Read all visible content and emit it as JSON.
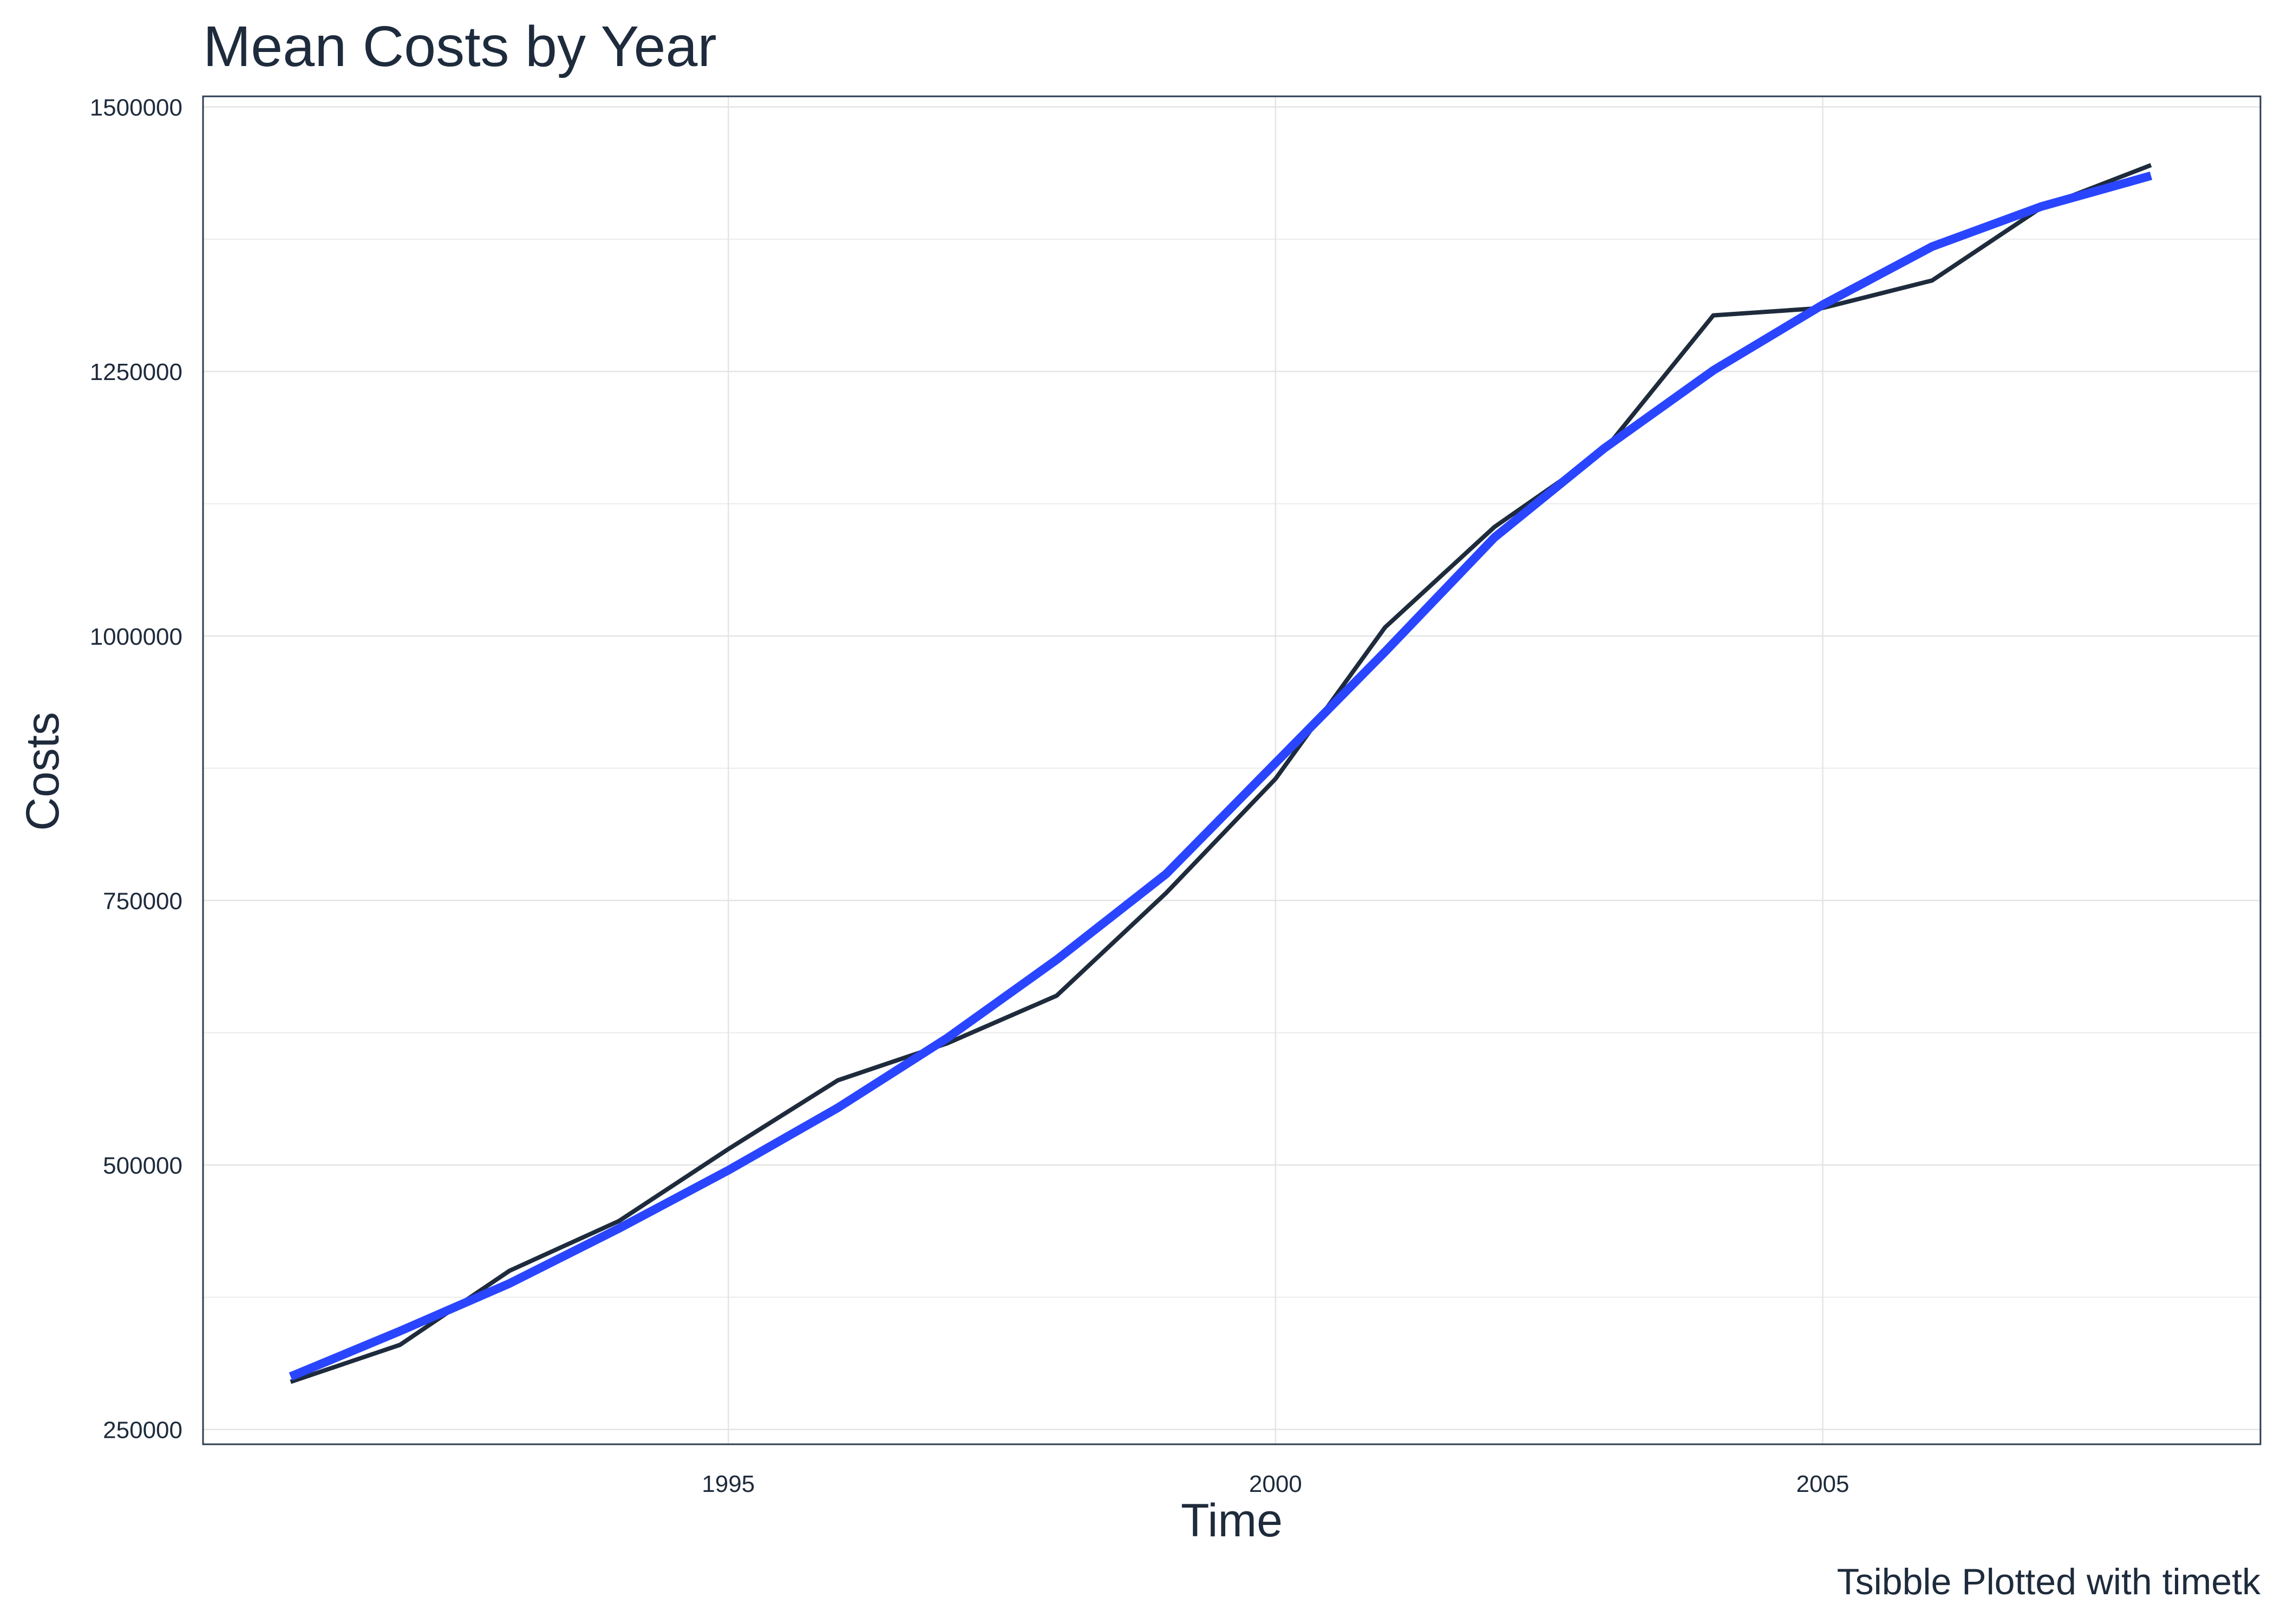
{
  "chart_data": {
    "type": "line",
    "title": "Mean Costs by Year",
    "xlabel": "Time",
    "ylabel": "Costs",
    "caption": "Tsibble Plotted with timetk",
    "xlim": [
      1990.2,
      2009.0
    ],
    "ylim": [
      236000,
      1510000
    ],
    "x_ticks": [
      1995,
      2000,
      2005
    ],
    "x_tick_labels": [
      "1995",
      "2000",
      "2005"
    ],
    "y_ticks": [
      250000,
      500000,
      750000,
      1000000,
      1250000,
      1500000
    ],
    "y_tick_labels": [
      "250000",
      "500000",
      "750000",
      "1000000",
      "1250000",
      "1500000"
    ],
    "grid": true,
    "series": [
      {
        "color": "#1e2b3c",
        "x": [
          1991,
          1992,
          1993,
          1994,
          1995,
          1996,
          1997,
          1998,
          1999,
          2000,
          2001,
          2002,
          2003,
          2004,
          2005,
          2006,
          2007,
          2008
        ],
        "y": [
          295000,
          330000,
          400000,
          447000,
          515000,
          580000,
          615000,
          660000,
          757000,
          865000,
          1008000,
          1103000,
          1175000,
          1303000,
          1310000,
          1336000,
          1405000,
          1445000
        ]
      },
      {
        "color": "#2a45ff",
        "x": [
          1991,
          1992,
          1993,
          1994,
          1995,
          1996,
          1997,
          1998,
          1999,
          2000,
          2001,
          2002,
          2003,
          2004,
          2005,
          2006,
          2007,
          2008
        ],
        "y": [
          300000,
          343000,
          388000,
          440000,
          495000,
          554000,
          620000,
          694000,
          775000,
          880000,
          985000,
          1093000,
          1177000,
          1251000,
          1313000,
          1368000,
          1406000,
          1435000
        ]
      }
    ]
  }
}
